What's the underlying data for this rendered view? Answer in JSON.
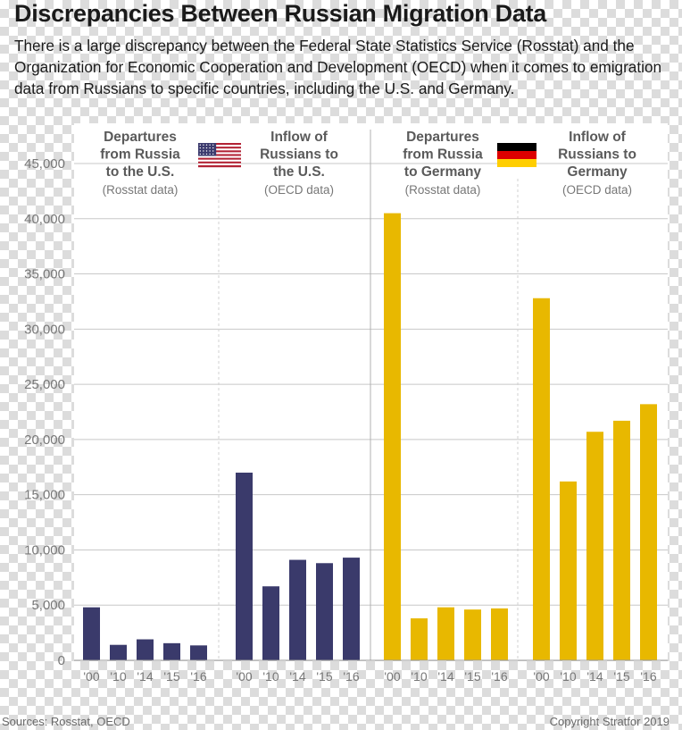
{
  "title": "Discrepancies Between Russian Migration Data",
  "subtitle": "There is a large discrepancy between the Federal State Statistics Service (Rosstat) and the Organization for Economic Cooperation and Development (OECD) when it comes to emigration data from Russians to specific countries, including the U.S. and Germany.",
  "source": "Sources: Rosstat, OECD",
  "copyright": "Copyright Stratfor 2019",
  "colors": {
    "us": "#3a3a6b",
    "germany": "#e8b800",
    "grid": "#c8c8c8"
  },
  "flags": [
    {
      "name": "us-flag-icon",
      "country": "U.S."
    },
    {
      "name": "germany-flag-icon",
      "country": "Germany"
    }
  ],
  "chart_data": {
    "type": "bar",
    "ylim": [
      0,
      45000
    ],
    "y_ticks": [
      0,
      5000,
      10000,
      15000,
      20000,
      25000,
      30000,
      35000,
      40000,
      45000
    ],
    "y_tick_labels": [
      "0",
      "5,000",
      "10,000",
      "15,000",
      "20,000",
      "25,000",
      "30,000",
      "35,000",
      "40,000",
      "45,000"
    ],
    "categories": [
      "'00",
      "'10",
      "'14",
      "'15",
      "'16"
    ],
    "grid": true,
    "panels": [
      {
        "title_lines": [
          "Departures",
          "from Russia",
          "to the U.S."
        ],
        "source_label": "(Rosstat data)",
        "color_key": "us",
        "values": [
          4800,
          1400,
          1900,
          1550,
          1350
        ]
      },
      {
        "title_lines": [
          "Inflow of",
          "Russians to",
          "the U.S."
        ],
        "source_label": "(OECD data)",
        "color_key": "us",
        "values": [
          17000,
          6700,
          9100,
          8800,
          9300
        ]
      },
      {
        "title_lines": [
          "Departures",
          "from Russia",
          "to Germany"
        ],
        "source_label": "(Rosstat data)",
        "color_key": "germany",
        "values": [
          40500,
          3800,
          4800,
          4600,
          4700
        ]
      },
      {
        "title_lines": [
          "Inflow of",
          "Russians to",
          "Germany"
        ],
        "source_label": "(OECD data)",
        "color_key": "germany",
        "values": [
          32800,
          16200,
          20700,
          21700,
          23200
        ]
      }
    ]
  }
}
